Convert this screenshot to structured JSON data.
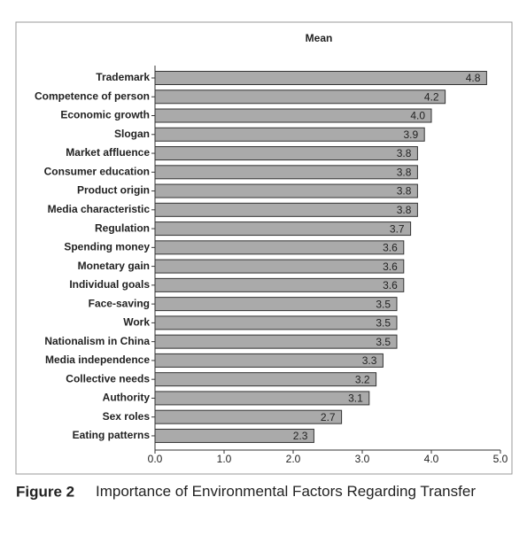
{
  "chart_data": {
    "type": "barh",
    "title": "Mean",
    "figure_label": "Figure 2",
    "caption": "Importance of Environmental Factors Regarding Transfer",
    "categories": [
      "Trademark",
      "Competence of person",
      "Economic growth",
      "Slogan",
      "Market affluence",
      "Consumer education",
      "Product origin",
      "Media characteristic",
      "Regulation",
      "Spending money",
      "Monetary gain",
      "Individual goals",
      "Face-saving",
      "Work",
      "Nationalism in China",
      "Media independence",
      "Collective needs",
      "Authority",
      "Sex roles",
      "Eating patterns"
    ],
    "values": [
      4.8,
      4.2,
      4.0,
      3.9,
      3.8,
      3.8,
      3.8,
      3.8,
      3.7,
      3.6,
      3.6,
      3.6,
      3.5,
      3.5,
      3.5,
      3.3,
      3.2,
      3.1,
      2.7,
      2.3
    ],
    "value_labels": [
      "4.8",
      "4.2",
      "4.0",
      "3.9",
      "3.8",
      "3.8",
      "3.8",
      "3.8",
      "3.7",
      "3.6",
      "3.6",
      "3.6",
      "3.5",
      "3.5",
      "3.5",
      "3.3",
      "3.2",
      "3.1",
      "2.7",
      "2.3"
    ],
    "color": "#aaaaaa",
    "xlim": [
      0,
      5
    ],
    "xticks": [
      {
        "value": 0,
        "label": "0.0"
      },
      {
        "value": 1,
        "label": "1.0"
      },
      {
        "value": 2,
        "label": "2.0"
      },
      {
        "value": 3,
        "label": "3.0"
      },
      {
        "value": 4,
        "label": "4.0"
      },
      {
        "value": 5,
        "label": "5.0"
      }
    ]
  }
}
